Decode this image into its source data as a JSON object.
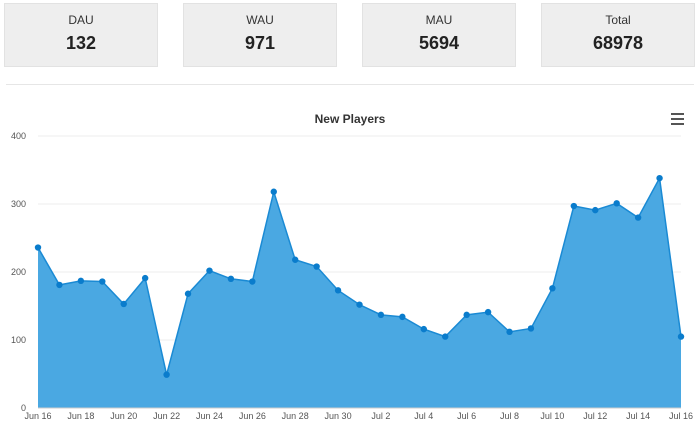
{
  "stats": [
    {
      "label": "DAU",
      "value": "132"
    },
    {
      "label": "WAU",
      "value": "971"
    },
    {
      "label": "MAU",
      "value": "5694"
    },
    {
      "label": "Total",
      "value": "68978"
    }
  ],
  "colors": {
    "area_fill": "#4aa8e2",
    "line": "#1a8ad4",
    "point": "#0a7ccc",
    "card_bg": "#eeeeee",
    "grid": "#ececec"
  },
  "icons": {
    "menu": "hamburger-menu-icon"
  },
  "chart_data": {
    "type": "area",
    "title": "New Players",
    "xlabel": "",
    "ylabel": "",
    "x": [
      "Jun 16",
      "Jun 17",
      "Jun 18",
      "Jun 19",
      "Jun 20",
      "Jun 21",
      "Jun 22",
      "Jun 23",
      "Jun 24",
      "Jun 25",
      "Jun 26",
      "Jun 27",
      "Jun 28",
      "Jun 29",
      "Jun 30",
      "Jul 1",
      "Jul 2",
      "Jul 3",
      "Jul 4",
      "Jul 5",
      "Jul 6",
      "Jul 7",
      "Jul 8",
      "Jul 9",
      "Jul 10",
      "Jul 11",
      "Jul 12",
      "Jul 13",
      "Jul 14",
      "Jul 15",
      "Jul 16"
    ],
    "series": [
      {
        "values": [
          236,
          181,
          187,
          186,
          153,
          191,
          49,
          168,
          202,
          190,
          186,
          318,
          218,
          208,
          173,
          152,
          137,
          134,
          116,
          105,
          137,
          141,
          112,
          117,
          176,
          297,
          291,
          301,
          280,
          338,
          105
        ]
      }
    ],
    "x_tick_labels": [
      "Jun 16",
      "Jun 18",
      "Jun 20",
      "Jun 22",
      "Jun 24",
      "Jun 26",
      "Jun 28",
      "Jun 30",
      "Jul 2",
      "Jul 4",
      "Jul 6",
      "Jul 8",
      "Jul 10",
      "Jul 12",
      "Jul 14",
      "Jul 16"
    ],
    "y_ticks": [
      0,
      100,
      200,
      300,
      400
    ],
    "ylim": [
      0,
      400
    ],
    "grid": true,
    "legend": "none"
  }
}
